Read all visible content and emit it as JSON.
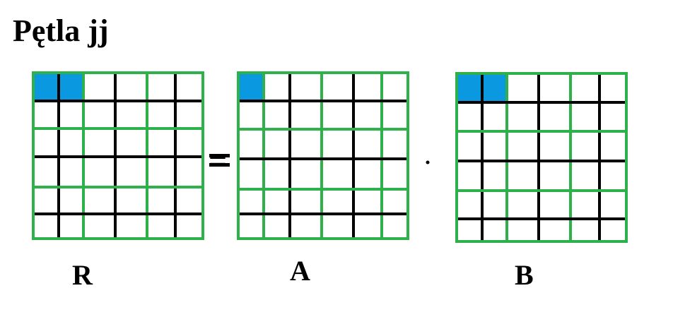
{
  "title": "Pętla jj",
  "operator_equals": "=",
  "operator_dot": "·",
  "colors": {
    "grid_green": "#2eb14a",
    "grid_black": "#000000",
    "highlight_blue": "#0a98e0",
    "background": "#ffffff"
  },
  "matrices": [
    {
      "id": "R",
      "label": "R",
      "size": 6,
      "highlighted_cells": [
        [
          0,
          0
        ],
        [
          0,
          1
        ]
      ]
    },
    {
      "id": "A",
      "label": "A",
      "size": 6,
      "highlighted_cells": [
        [
          0,
          0
        ]
      ]
    },
    {
      "id": "B",
      "label": "B",
      "size": 6,
      "highlighted_cells": [
        [
          0,
          0
        ],
        [
          0,
          1
        ]
      ]
    }
  ]
}
